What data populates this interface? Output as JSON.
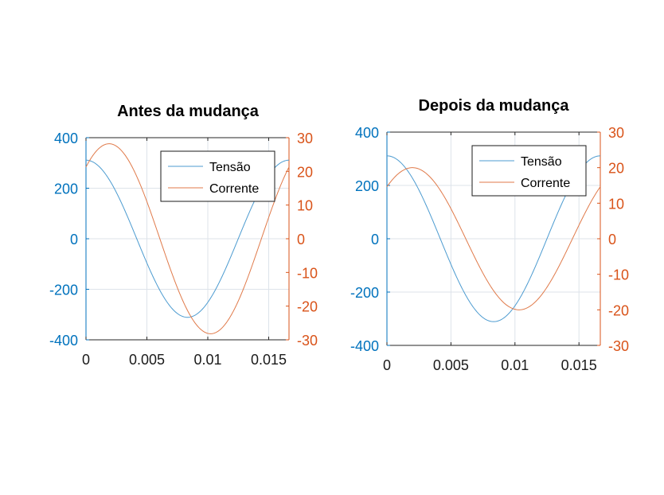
{
  "colors": {
    "left_axis": "#0072bd",
    "right_axis": "#d95319",
    "series_voltage": "#4c9bd0",
    "series_current": "#e07a4a",
    "grid": "#dde3ea",
    "frame": "#262626"
  },
  "chart_data": [
    {
      "type": "line",
      "title": "Antes da mudança",
      "xlabel": "",
      "x_range": [
        0,
        0.016667
      ],
      "x_ticks": [
        0,
        0.005,
        0.01,
        0.015
      ],
      "x_tick_labels": [
        "0",
        "0.005",
        "0.01",
        "0.015"
      ],
      "yleft": {
        "label": "",
        "range": [
          -400,
          400
        ],
        "ticks": [
          -400,
          -200,
          0,
          200,
          400
        ],
        "tick_labels": [
          "-400",
          "-200",
          "0",
          "200",
          "400"
        ]
      },
      "yright": {
        "label": "",
        "range": [
          -30,
          30
        ],
        "ticks": [
          -30,
          -20,
          -10,
          0,
          10,
          20,
          30
        ],
        "tick_labels": [
          "-30",
          "-20",
          "-10",
          "0",
          "10",
          "20",
          "30"
        ]
      },
      "grid": true,
      "legend": {
        "placement": "top-right",
        "entries": [
          "Tensão",
          "Corrente"
        ]
      },
      "series": [
        {
          "name": "Tensão",
          "axis": "left",
          "function": "cosine",
          "amplitude": 311,
          "frequency_hz": 60,
          "phase_deg": 0,
          "color_key": "series_voltage"
        },
        {
          "name": "Corrente",
          "axis": "right",
          "function": "cosine",
          "amplitude": 28.2,
          "frequency_hz": 60,
          "phase_deg": -41,
          "color_key": "series_current"
        }
      ]
    },
    {
      "type": "line",
      "title": "Depois da mudança",
      "xlabel": "",
      "x_range": [
        0,
        0.016667
      ],
      "x_ticks": [
        0,
        0.005,
        0.01,
        0.015
      ],
      "x_tick_labels": [
        "0",
        "0.005",
        "0.01",
        "0.015"
      ],
      "yleft": {
        "label": "",
        "range": [
          -400,
          400
        ],
        "ticks": [
          -400,
          -200,
          0,
          200,
          400
        ],
        "tick_labels": [
          "-400",
          "-200",
          "0",
          "200",
          "400"
        ]
      },
      "yright": {
        "label": "",
        "range": [
          -30,
          30
        ],
        "ticks": [
          -30,
          -20,
          -10,
          0,
          10,
          20,
          30
        ],
        "tick_labels": [
          "-30",
          "-20",
          "-10",
          "0",
          "10",
          "20",
          "30"
        ]
      },
      "grid": true,
      "legend": {
        "placement": "top-right",
        "entries": [
          "Tensão",
          "Corrente"
        ]
      },
      "series": [
        {
          "name": "Tensão",
          "axis": "left",
          "function": "cosine",
          "amplitude": 311,
          "frequency_hz": 60,
          "phase_deg": 0,
          "color_key": "series_voltage"
        },
        {
          "name": "Corrente",
          "axis": "right",
          "function": "cosine",
          "amplitude": 20,
          "frequency_hz": 60,
          "phase_deg": -43,
          "color_key": "series_current"
        }
      ]
    }
  ]
}
